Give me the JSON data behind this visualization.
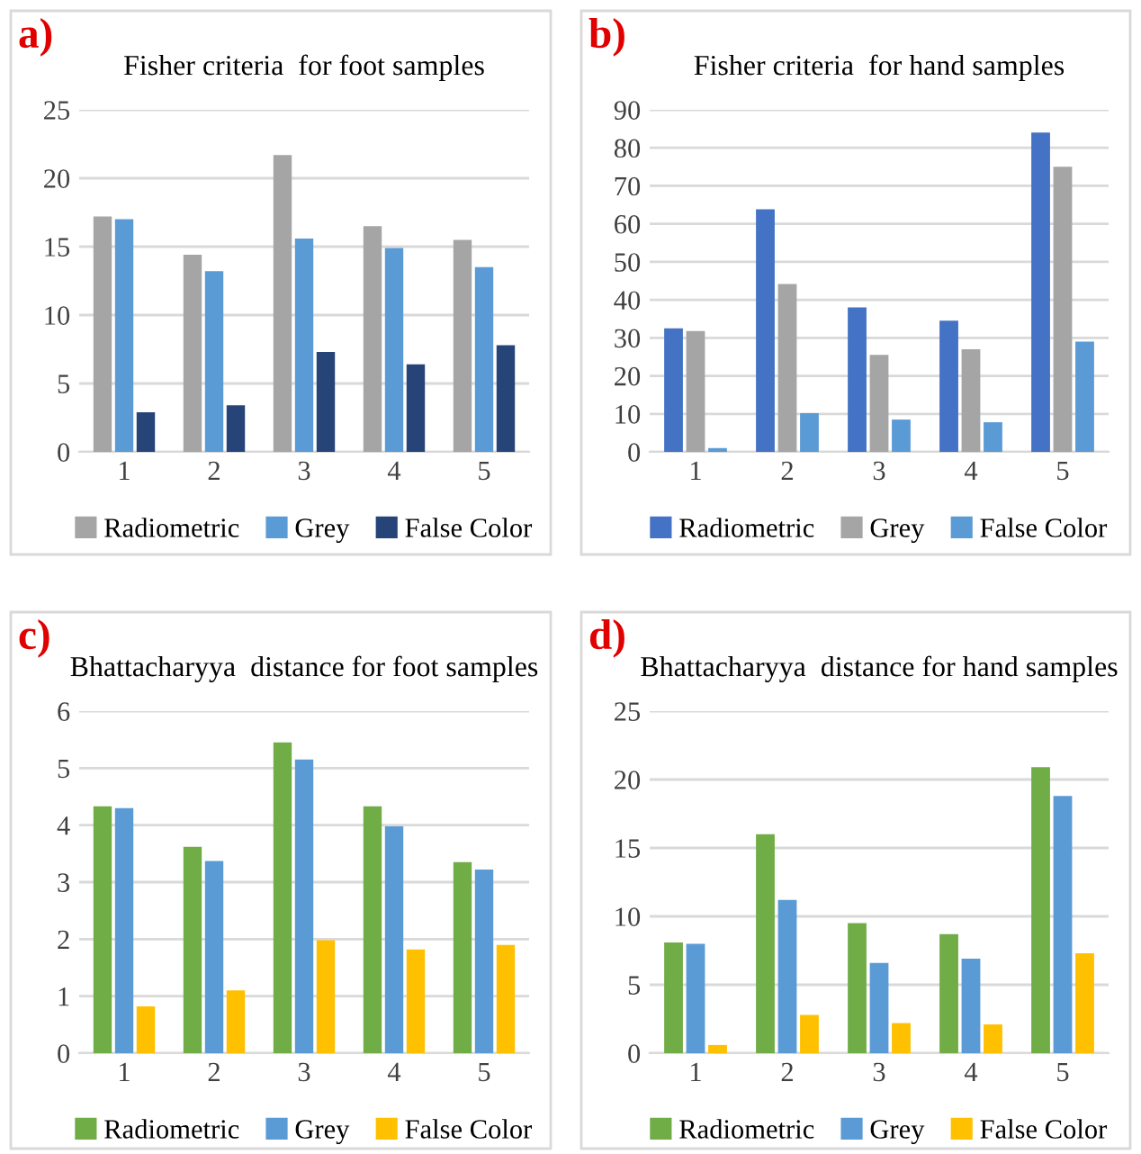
{
  "chart_data": [
    {
      "type": "bar",
      "title": "Fisher criteria  for foot samples",
      "annotations": [
        "a)"
      ],
      "categories": [
        "1",
        "2",
        "3",
        "4",
        "5"
      ],
      "series": [
        {
          "name": "Radiometric",
          "color": "#a5a5a5",
          "values": [
            17.2,
            14.4,
            21.7,
            16.5,
            15.5
          ]
        },
        {
          "name": "Grey",
          "color": "#5b9bd5",
          "values": [
            17.0,
            13.2,
            15.6,
            14.9,
            13.5
          ]
        },
        {
          "name": "False Color",
          "color": "#264478",
          "values": [
            2.9,
            3.4,
            7.3,
            6.4,
            7.8
          ]
        }
      ],
      "ylim": [
        0,
        25
      ],
      "yticks": [
        0,
        5,
        10,
        15,
        20,
        25
      ],
      "grid": "y",
      "legend": "bottom"
    },
    {
      "type": "bar",
      "title": "Fisher criteria  for hand samples",
      "annotations": [
        "b)"
      ],
      "categories": [
        "1",
        "2",
        "3",
        "4",
        "5"
      ],
      "series": [
        {
          "name": "Radiometric",
          "color": "#4472c4",
          "values": [
            32.5,
            63.8,
            38,
            34.5,
            84
          ]
        },
        {
          "name": "Grey",
          "color": "#a5a5a5",
          "values": [
            31.8,
            44.2,
            25.5,
            27,
            75
          ]
        },
        {
          "name": "False Color",
          "color": "#5b9bd5",
          "values": [
            1,
            10.2,
            8.5,
            7.8,
            29
          ]
        }
      ],
      "ylim": [
        0,
        90
      ],
      "yticks": [
        0,
        10,
        20,
        30,
        40,
        50,
        60,
        70,
        80,
        90
      ],
      "grid": "y",
      "legend": "bottom"
    },
    {
      "type": "bar",
      "title": "Bhattacharyya  distance for foot samples",
      "annotations": [
        "c)"
      ],
      "categories": [
        "1",
        "2",
        "3",
        "4",
        "5"
      ],
      "series": [
        {
          "name": "Radiometric",
          "color": "#70ad47",
          "values": [
            4.33,
            3.62,
            5.45,
            4.33,
            3.35
          ]
        },
        {
          "name": "Grey",
          "color": "#5b9bd5",
          "values": [
            4.3,
            3.37,
            5.15,
            3.98,
            3.22
          ]
        },
        {
          "name": "False Color",
          "color": "#ffc000",
          "values": [
            0.82,
            1.1,
            1.98,
            1.82,
            1.9
          ]
        }
      ],
      "ylim": [
        0,
        6
      ],
      "yticks": [
        0,
        1,
        2,
        3,
        4,
        5,
        6
      ],
      "grid": "y",
      "legend": "bottom"
    },
    {
      "type": "bar",
      "title": "Bhattacharyya  distance for hand samples",
      "annotations": [
        "d)"
      ],
      "categories": [
        "1",
        "2",
        "3",
        "4",
        "5"
      ],
      "series": [
        {
          "name": "Radiometric",
          "color": "#70ad47",
          "values": [
            8.1,
            16,
            9.5,
            8.7,
            20.9
          ]
        },
        {
          "name": "Grey",
          "color": "#5b9bd5",
          "values": [
            8,
            11.2,
            6.6,
            6.9,
            18.8
          ]
        },
        {
          "name": "False Color",
          "color": "#ffc000",
          "values": [
            0.6,
            2.8,
            2.2,
            2.1,
            7.3
          ]
        }
      ],
      "ylim": [
        0,
        25
      ],
      "yticks": [
        0,
        5,
        10,
        15,
        20,
        25
      ],
      "grid": "y",
      "legend": "bottom"
    }
  ]
}
